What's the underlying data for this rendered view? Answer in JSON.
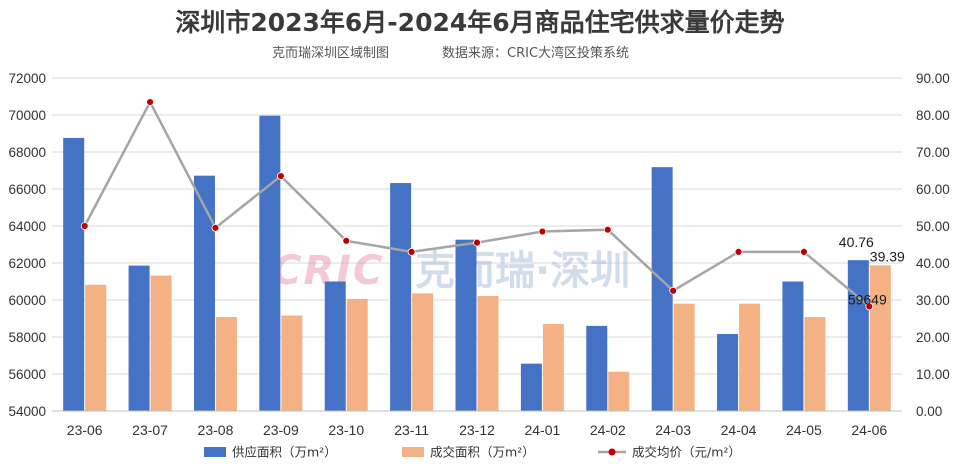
{
  "chart_data": {
    "type": "bar",
    "title": "深圳市2023年6月-2024年6月商品住宅供求量价走势",
    "subtitle_left": "克而瑞深圳区域制图",
    "subtitle_right": "数据来源：CRIC大湾区投策系统",
    "categories": [
      "23-06",
      "23-07",
      "23-08",
      "23-09",
      "23-10",
      "23-11",
      "23-12",
      "24-01",
      "24-02",
      "24-03",
      "24-04",
      "24-05",
      "24-06"
    ],
    "series": [
      {
        "name": "供应面积（万m²）",
        "type": "bar",
        "axis": "right",
        "color": "#4472c4",
        "values": [
          73.8,
          39.3,
          63.6,
          79.8,
          35.0,
          61.6,
          46.3,
          12.8,
          23.0,
          65.9,
          20.8,
          35.0,
          40.76
        ]
      },
      {
        "name": "成交面积（万m²）",
        "type": "bar",
        "axis": "right",
        "color": "#f4b183",
        "values": [
          34.1,
          36.6,
          25.4,
          25.8,
          30.3,
          31.8,
          31.1,
          23.5,
          10.6,
          29.0,
          29.0,
          25.4,
          39.39
        ]
      },
      {
        "name": "成交均价（元/m²）",
        "type": "line",
        "axis": "left",
        "color": "#a5a5a5",
        "marker_color": "#c00000",
        "values": [
          64000,
          70700,
          63900,
          66700,
          63200,
          62600,
          63100,
          63700,
          63800,
          60500,
          62600,
          62600,
          59649
        ]
      }
    ],
    "y_left": {
      "min": 54000,
      "max": 72000,
      "ticks": [
        "54000",
        "56000",
        "58000",
        "60000",
        "62000",
        "64000",
        "66000",
        "68000",
        "70000",
        "72000"
      ]
    },
    "y_right": {
      "min": 0,
      "max": 90,
      "ticks": [
        "0.00",
        "10.00",
        "20.00",
        "30.00",
        "40.00",
        "50.00",
        "60.00",
        "70.00",
        "80.00",
        "90.00"
      ]
    },
    "grid": true,
    "legend_position": "bottom",
    "data_labels": [
      {
        "series": 0,
        "index": 12,
        "text": "40.76"
      },
      {
        "series": 1,
        "index": 12,
        "text": "39.39"
      },
      {
        "series": 2,
        "index": 12,
        "text": "59649"
      }
    ]
  },
  "watermark": {
    "logo": "CRIC",
    "text": "克而瑞·深圳"
  },
  "colors": {
    "supply": "#4472c4",
    "deal": "#f4b183",
    "price_line": "#a5a5a5",
    "price_marker": "#c00000",
    "grid": "#d9d9d9"
  }
}
